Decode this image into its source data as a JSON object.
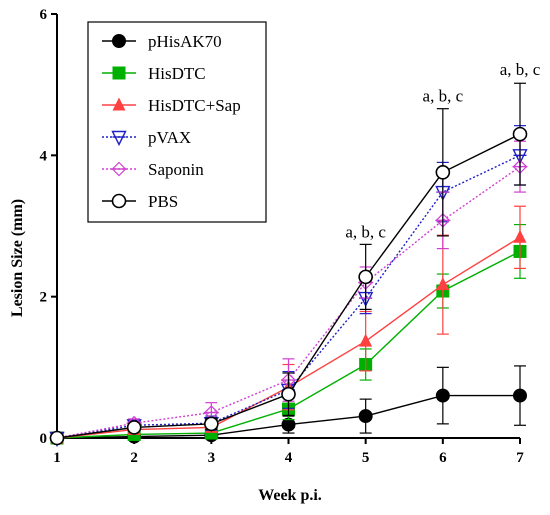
{
  "chart_data": {
    "type": "line",
    "xlabel": "Week p.i.",
    "ylabel": "Lesion Size (mm)",
    "x": [
      1,
      2,
      3,
      4,
      5,
      6,
      7
    ],
    "xlim": [
      1,
      7
    ],
    "ylim": [
      0,
      6
    ],
    "yticks": [
      0,
      2,
      4,
      6
    ],
    "legend_position": "top-left",
    "series": [
      {
        "name": "pHisAK70",
        "color": "#000000",
        "marker": "circle-filled",
        "dash": "solid",
        "values": [
          0.0,
          0.02,
          0.04,
          0.19,
          0.31,
          0.6,
          0.6
        ],
        "errors": [
          0.0,
          0.02,
          0.04,
          0.12,
          0.24,
          0.4,
          0.42
        ]
      },
      {
        "name": "HisDTC",
        "color": "#00b000",
        "marker": "square",
        "dash": "solid",
        "values": [
          0.0,
          0.05,
          0.07,
          0.41,
          1.04,
          2.08,
          2.64
        ],
        "errors": [
          0.0,
          0.03,
          0.05,
          0.15,
          0.22,
          0.24,
          0.38
        ]
      },
      {
        "name": "HisDTC+Sap",
        "color": "#ff4040",
        "marker": "triangle",
        "dash": "solid",
        "values": [
          0.0,
          0.12,
          0.15,
          0.72,
          1.37,
          2.17,
          2.84
        ],
        "errors": [
          0.0,
          0.05,
          0.06,
          0.32,
          0.42,
          0.7,
          0.44
        ]
      },
      {
        "name": "pVAX",
        "color": "#2020c8",
        "marker": "triangle-down",
        "dash": "dotted",
        "values": [
          0.0,
          0.18,
          0.21,
          0.68,
          1.98,
          3.48,
          4.0
        ],
        "errors": [
          0.0,
          0.06,
          0.1,
          0.26,
          0.22,
          0.42,
          0.42
        ]
      },
      {
        "name": "Saponin",
        "color": "#d040d0",
        "marker": "diamond-dash",
        "dash": "dotted",
        "values": [
          0.0,
          0.21,
          0.36,
          0.82,
          2.2,
          3.08,
          3.84
        ],
        "errors": [
          0.0,
          0.06,
          0.14,
          0.3,
          0.22,
          0.4,
          0.36
        ]
      },
      {
        "name": "PBS",
        "color": "#000000",
        "marker": "circle-open",
        "dash": "solid",
        "values": [
          0.0,
          0.15,
          0.2,
          0.62,
          2.28,
          3.76,
          4.3
        ],
        "errors": [
          0.0,
          0.04,
          0.08,
          0.3,
          0.46,
          0.9,
          0.72
        ]
      }
    ],
    "annotations": [
      {
        "text": "a, b, c",
        "x": 5,
        "y": 2.75
      },
      {
        "text": "a, b, c",
        "x": 6,
        "y": 4.68
      },
      {
        "text": "a, b, c",
        "x": 7,
        "y": 5.05
      }
    ]
  }
}
